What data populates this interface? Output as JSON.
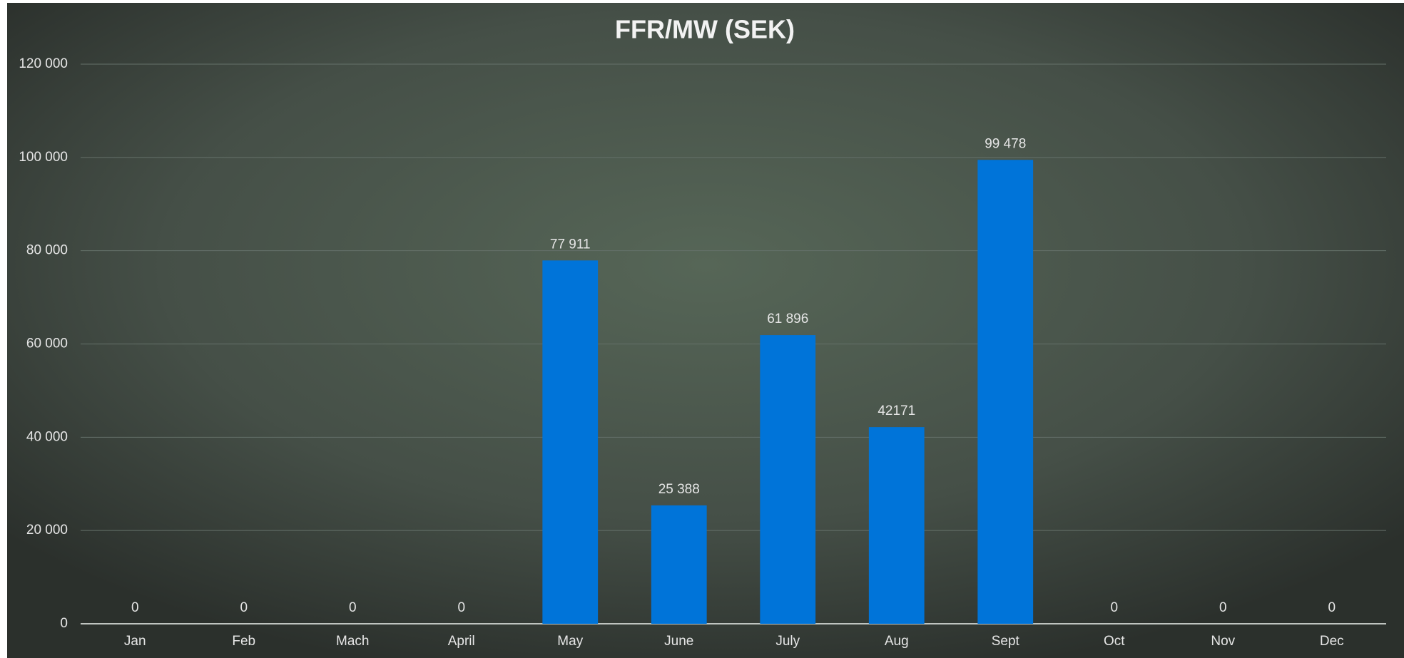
{
  "chart_data": {
    "type": "bar",
    "title": "FFR/MW (SEK)",
    "categories": [
      "Jan",
      "Feb",
      "Mach",
      "April",
      "May",
      "June",
      "July",
      "Aug",
      "Sept",
      "Oct",
      "Nov",
      "Dec"
    ],
    "values": [
      0,
      0,
      0,
      0,
      77911,
      25388,
      61896,
      42171,
      99478,
      0,
      0,
      0
    ],
    "value_labels": [
      "0",
      "0",
      "0",
      "0",
      "77 911",
      "25 388",
      "61 896",
      "42171",
      "99 478",
      "0",
      "0",
      "0"
    ],
    "color": "#0074d9",
    "ylim": [
      0,
      120000
    ],
    "yticks": [
      0,
      {
        "value": 20000,
        "label": "20 000"
      },
      {
        "value": 40000,
        "label": "40 000"
      },
      {
        "value": 60000,
        "label": "60 000"
      },
      {
        "value": 80000,
        "label": "80 000"
      },
      {
        "value": 100000,
        "label": "100 000"
      },
      {
        "value": 120000,
        "label": "120 000"
      }
    ],
    "grid": true
  }
}
